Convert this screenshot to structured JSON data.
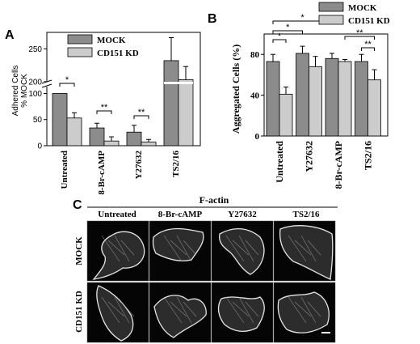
{
  "panels": {
    "a": "A",
    "b": "B",
    "c": "C"
  },
  "chart_data": [
    {
      "panel": "A",
      "type": "bar",
      "ylabel_lines": [
        "Adhered Cells",
        "% MOCK"
      ],
      "categories": [
        "Untreated",
        "8-Br-cAMP",
        "Y27632",
        "TS2/16"
      ],
      "yticks": [
        0,
        50,
        100,
        200,
        250
      ],
      "broken_axis": true,
      "lower_range": [
        0,
        110
      ],
      "upper_range": [
        190,
        275
      ],
      "series": [
        {
          "name": "MOCK",
          "color": "#8c8c8c",
          "values": [
            100,
            34,
            26,
            232
          ],
          "errors": [
            0,
            9,
            13,
            35
          ]
        },
        {
          "name": "CD151 KD",
          "color": "#cccccc",
          "values": [
            53,
            9,
            7,
            203
          ],
          "errors": [
            10,
            8,
            5,
            20
          ]
        }
      ],
      "significance": [
        {
          "category": "Untreated",
          "label": "*"
        },
        {
          "category": "8-Br-cAMP",
          "label": "**"
        },
        {
          "category": "Y27632",
          "label": "**"
        }
      ]
    },
    {
      "panel": "B",
      "type": "bar",
      "ylabel": "Aggregated Cells (%)",
      "categories": [
        "Untreated",
        "Y27632",
        "8-Br-cAMP",
        "TS2/16"
      ],
      "yticks": [
        0,
        40,
        80
      ],
      "ylim": [
        0,
        100
      ],
      "series": [
        {
          "name": "MOCK",
          "color": "#8c8c8c",
          "values": [
            73,
            81,
            76,
            73
          ],
          "errors": [
            7,
            7,
            5,
            7
          ]
        },
        {
          "name": "CD151 KD",
          "color": "#cccccc",
          "values": [
            41,
            68,
            73,
            55
          ],
          "errors": [
            7,
            10,
            2,
            10
          ]
        }
      ],
      "significance": [
        {
          "label": "*",
          "type": "within",
          "group": 0
        },
        {
          "label": "*",
          "type": "between-mock",
          "from": 0,
          "to": 1
        },
        {
          "label": "*",
          "type": "between-mock",
          "from": 0,
          "to": 2
        },
        {
          "label": "**",
          "type": "within",
          "group": 3
        },
        {
          "label": "**",
          "type": "cross",
          "from": 2,
          "to": 3
        }
      ]
    }
  ],
  "micrograph": {
    "title": "F-actin",
    "columns": [
      "Untreated",
      "8-Br-cAMP",
      "Y27632",
      "TS2/16"
    ],
    "rows": [
      "MOCK",
      "CD151 KD"
    ]
  }
}
